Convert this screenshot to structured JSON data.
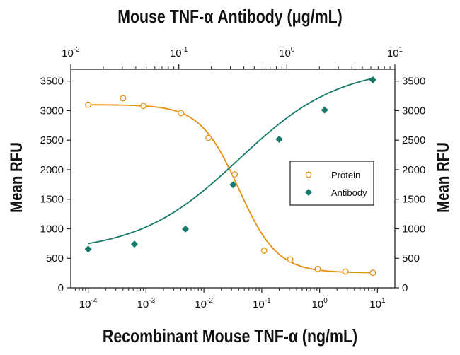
{
  "chart_data": {
    "type": "scatter",
    "title": "Mouse TNF-α Antibody (μg/mL)",
    "xlabel": "Recombinant Mouse TNF-α (ng/mL)",
    "x2label": "Mouse TNF-α Antibody (μg/mL)",
    "ylabel": "Mean RFU",
    "y2label": "Mean RFU",
    "x_scale": "log",
    "xlim": [
      5e-05,
      20
    ],
    "x2_scale": "log",
    "x2lim": [
      0.01,
      10
    ],
    "ylim": [
      0,
      3700
    ],
    "x_ticks": [
      {
        "value": 0.0001,
        "base": "10",
        "exp": "-4"
      },
      {
        "value": 0.001,
        "base": "10",
        "exp": "-3"
      },
      {
        "value": 0.01,
        "base": "10",
        "exp": "-2"
      },
      {
        "value": 0.1,
        "base": "10",
        "exp": "-1"
      },
      {
        "value": 1,
        "base": "10",
        "exp": "0"
      },
      {
        "value": 10,
        "base": "10",
        "exp": "1"
      }
    ],
    "x2_ticks": [
      {
        "value": 0.01,
        "base": "10",
        "exp": "-2"
      },
      {
        "value": 0.1,
        "base": "10",
        "exp": "-1"
      },
      {
        "value": 1,
        "base": "10",
        "exp": "0"
      },
      {
        "value": 10,
        "base": "10",
        "exp": "1"
      }
    ],
    "y_ticks": [
      0,
      500,
      1000,
      1500,
      2000,
      2500,
      3000,
      3500
    ],
    "legend_position": "right",
    "series": [
      {
        "name": "Protein",
        "color": "#E8900E",
        "marker": "open-circle",
        "points": [
          {
            "x": 0.0001,
            "y": 3100
          },
          {
            "x": 0.0004,
            "y": 3210
          },
          {
            "x": 0.0009,
            "y": 3080
          },
          {
            "x": 0.004,
            "y": 2960
          },
          {
            "x": 0.012,
            "y": 2540
          },
          {
            "x": 0.034,
            "y": 1920
          },
          {
            "x": 0.11,
            "y": 630
          },
          {
            "x": 0.31,
            "y": 480
          },
          {
            "x": 0.93,
            "y": 320
          },
          {
            "x": 2.8,
            "y": 275
          },
          {
            "x": 8.3,
            "y": 255
          }
        ],
        "curve": {
          "model": "4PL",
          "bottom": 255,
          "top": 3100,
          "ec50": 0.04,
          "hill": -1.3
        }
      },
      {
        "name": "Antibody",
        "color": "#137A6A",
        "marker": "filled-diamond",
        "points": [
          {
            "x": 0.0001,
            "y": 655
          },
          {
            "x": 0.00063,
            "y": 740
          },
          {
            "x": 0.0048,
            "y": 995
          },
          {
            "x": 0.032,
            "y": 1745
          },
          {
            "x": 0.2,
            "y": 2515
          },
          {
            "x": 1.22,
            "y": 3010
          },
          {
            "x": 8.3,
            "y": 3520
          }
        ],
        "curve": {
          "model": "4PL",
          "bottom": 600,
          "top": 3750,
          "ec50": 0.04,
          "hill": 0.5
        }
      }
    ]
  }
}
